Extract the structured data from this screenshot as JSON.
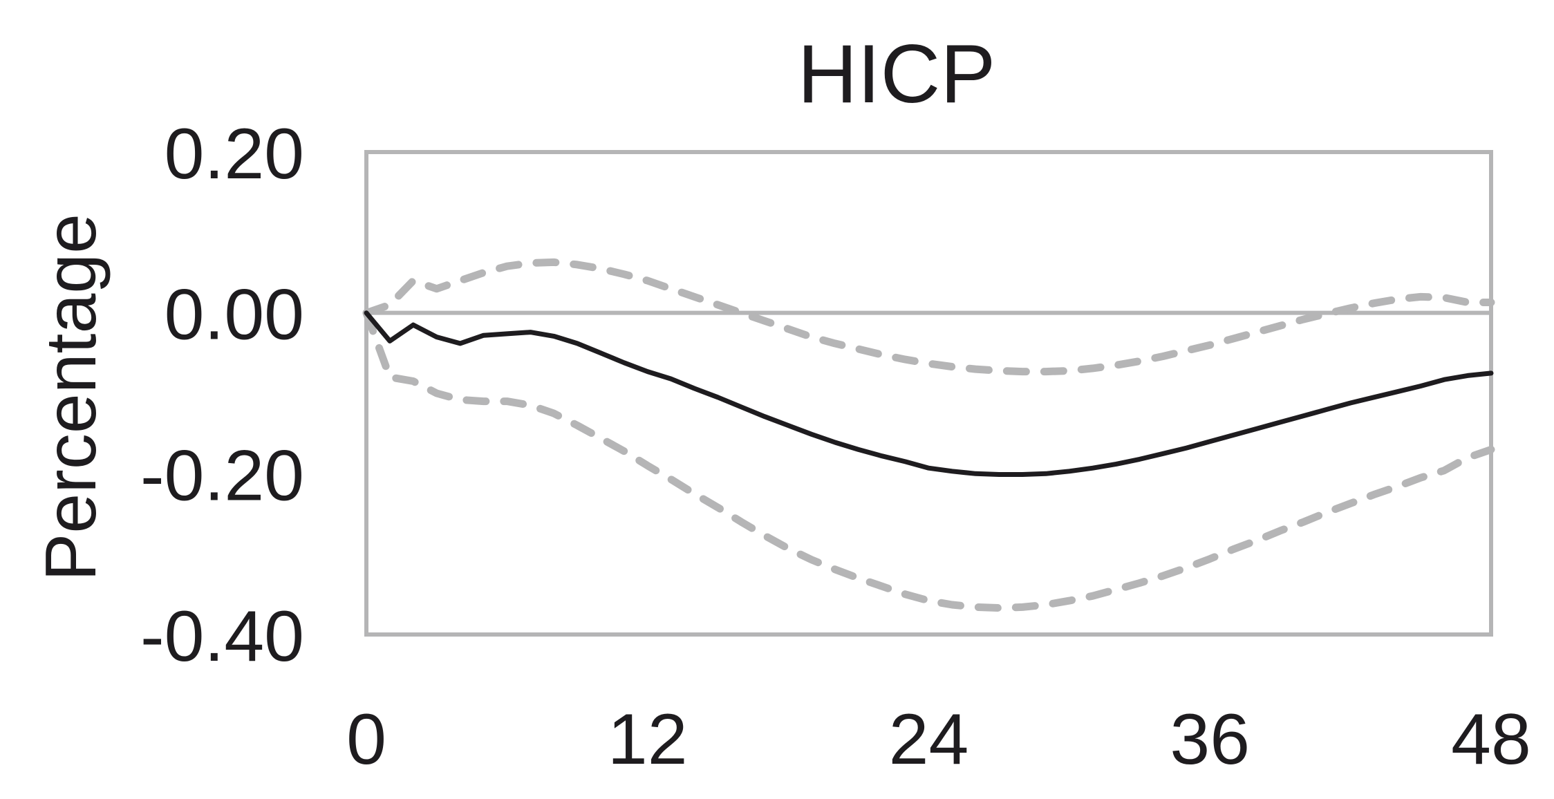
{
  "chart_data": {
    "type": "line",
    "title": "HICP",
    "xlabel": "",
    "ylabel": "Percentage",
    "xlim": [
      0,
      48
    ],
    "ylim": [
      -0.4,
      0.2
    ],
    "xticks": [
      0,
      12,
      24,
      36,
      48
    ],
    "xtick_labels": [
      "0",
      "12",
      "24",
      "36",
      "48"
    ],
    "yticks": [
      0.2,
      0.0,
      -0.2,
      -0.4
    ],
    "ytick_labels": [
      "0.20",
      "0.00",
      "-0.20",
      "-0.40"
    ],
    "zero_line": true,
    "grid": false,
    "legend": "none",
    "colors": {
      "frame": "#b5b5b6",
      "median": "#1e1c1f",
      "bands": "#b5b5b6",
      "text": "#1e1c1f"
    },
    "x": [
      0,
      1,
      2,
      3,
      4,
      5,
      6,
      7,
      8,
      9,
      10,
      11,
      12,
      13,
      14,
      15,
      16,
      17,
      18,
      19,
      20,
      21,
      22,
      23,
      24,
      25,
      26,
      27,
      28,
      29,
      30,
      31,
      32,
      33,
      34,
      35,
      36,
      37,
      38,
      39,
      40,
      41,
      42,
      43,
      44,
      45,
      46,
      47,
      48
    ],
    "series": [
      {
        "style": "solid",
        "values": [
          0.0,
          -0.035,
          -0.015,
          -0.03,
          -0.038,
          -0.028,
          -0.026,
          -0.024,
          -0.029,
          -0.038,
          -0.05,
          -0.062,
          -0.073,
          -0.082,
          -0.094,
          -0.105,
          -0.117,
          -0.129,
          -0.14,
          -0.151,
          -0.161,
          -0.17,
          -0.178,
          -0.185,
          -0.193,
          -0.197,
          -0.2,
          -0.201,
          -0.201,
          -0.2,
          -0.197,
          -0.193,
          -0.188,
          -0.182,
          -0.175,
          -0.168,
          -0.16,
          -0.152,
          -0.144,
          -0.136,
          -0.128,
          -0.12,
          -0.112,
          -0.105,
          -0.098,
          -0.091,
          -0.083,
          -0.078,
          -0.075
        ]
      },
      {
        "style": "dashed",
        "values": [
          0.0,
          0.01,
          0.04,
          0.03,
          0.04,
          0.05,
          0.058,
          0.062,
          0.063,
          0.06,
          0.055,
          0.048,
          0.04,
          0.03,
          0.02,
          0.01,
          0.0,
          -0.01,
          -0.02,
          -0.03,
          -0.038,
          -0.045,
          -0.052,
          -0.058,
          -0.063,
          -0.067,
          -0.07,
          -0.072,
          -0.073,
          -0.073,
          -0.072,
          -0.069,
          -0.065,
          -0.06,
          -0.054,
          -0.047,
          -0.04,
          -0.032,
          -0.024,
          -0.016,
          -0.008,
          -0.001,
          0.006,
          0.012,
          0.017,
          0.02,
          0.019,
          0.013,
          0.013
        ]
      },
      {
        "style": "dashed",
        "values": [
          0.0,
          -0.08,
          -0.085,
          -0.1,
          -0.108,
          -0.11,
          -0.11,
          -0.115,
          -0.125,
          -0.14,
          -0.156,
          -0.172,
          -0.19,
          -0.207,
          -0.225,
          -0.242,
          -0.26,
          -0.277,
          -0.293,
          -0.307,
          -0.319,
          -0.33,
          -0.34,
          -0.35,
          -0.358,
          -0.363,
          -0.366,
          -0.367,
          -0.366,
          -0.363,
          -0.358,
          -0.352,
          -0.344,
          -0.336,
          -0.327,
          -0.317,
          -0.306,
          -0.294,
          -0.283,
          -0.271,
          -0.26,
          -0.248,
          -0.237,
          -0.226,
          -0.216,
          -0.205,
          -0.196,
          -0.18,
          -0.17
        ]
      }
    ]
  }
}
